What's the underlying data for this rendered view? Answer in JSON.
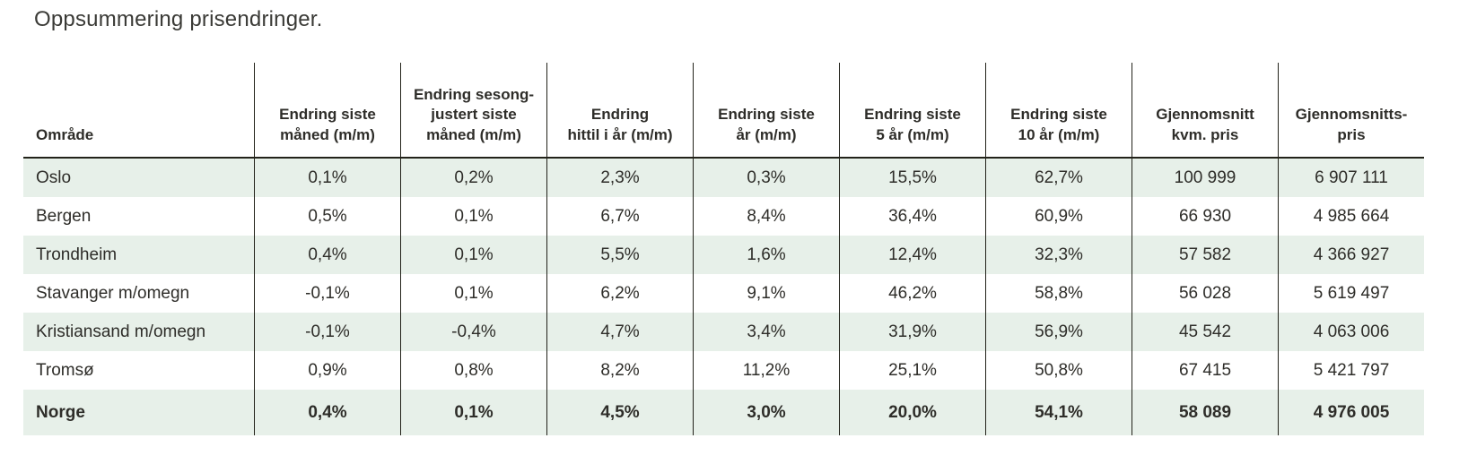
{
  "page": {
    "title": "Oppsummering prisendringer."
  },
  "colors": {
    "row_stripe_green": "#e7f0e9",
    "grid_line": "#22221a",
    "text": "#2e2d29"
  },
  "chart_data": {
    "type": "table",
    "title": "Oppsummering prisendringer.",
    "columns": [
      "Område",
      "Endring siste\nmåned (m/m)",
      "Endring sesong-\njustert siste\nmåned (m/m)",
      "Endring\nhittil i år (m/m)",
      "Endring siste\når (m/m)",
      "Endring siste\n5 år (m/m)",
      "Endring siste\n10 år (m/m)",
      "Gjennomsnitt\nkvm. pris",
      "Gjennomsnitts-\npris"
    ],
    "rows": [
      {
        "cells": [
          "Oslo",
          "0,1%",
          "0,2%",
          "2,3%",
          "0,3%",
          "15,5%",
          "62,7%",
          "100 999",
          "6 907 111"
        ],
        "striped": true,
        "bold": false
      },
      {
        "cells": [
          "Bergen",
          "0,5%",
          "0,1%",
          "6,7%",
          "8,4%",
          "36,4%",
          "60,9%",
          "66 930",
          "4 985 664"
        ],
        "striped": false,
        "bold": false
      },
      {
        "cells": [
          "Trondheim",
          "0,4%",
          "0,1%",
          "5,5%",
          "1,6%",
          "12,4%",
          "32,3%",
          "57 582",
          "4 366 927"
        ],
        "striped": true,
        "bold": false
      },
      {
        "cells": [
          "Stavanger m/omegn",
          "-0,1%",
          "0,1%",
          "6,2%",
          "9,1%",
          "46,2%",
          "58,8%",
          "56 028",
          "5 619 497"
        ],
        "striped": false,
        "bold": false
      },
      {
        "cells": [
          "Kristiansand m/omegn",
          "-0,1%",
          "-0,4%",
          "4,7%",
          "3,4%",
          "31,9%",
          "56,9%",
          "45 542",
          "4 063 006"
        ],
        "striped": true,
        "bold": false
      },
      {
        "cells": [
          "Tromsø",
          "0,9%",
          "0,8%",
          "8,2%",
          "11,2%",
          "25,1%",
          "50,8%",
          "67 415",
          "5 421 797"
        ],
        "striped": false,
        "bold": false
      },
      {
        "cells": [
          "Norge",
          "0,4%",
          "0,1%",
          "4,5%",
          "3,0%",
          "20,0%",
          "54,1%",
          "58 089",
          "4 976 005"
        ],
        "striped": true,
        "bold": true
      }
    ]
  }
}
